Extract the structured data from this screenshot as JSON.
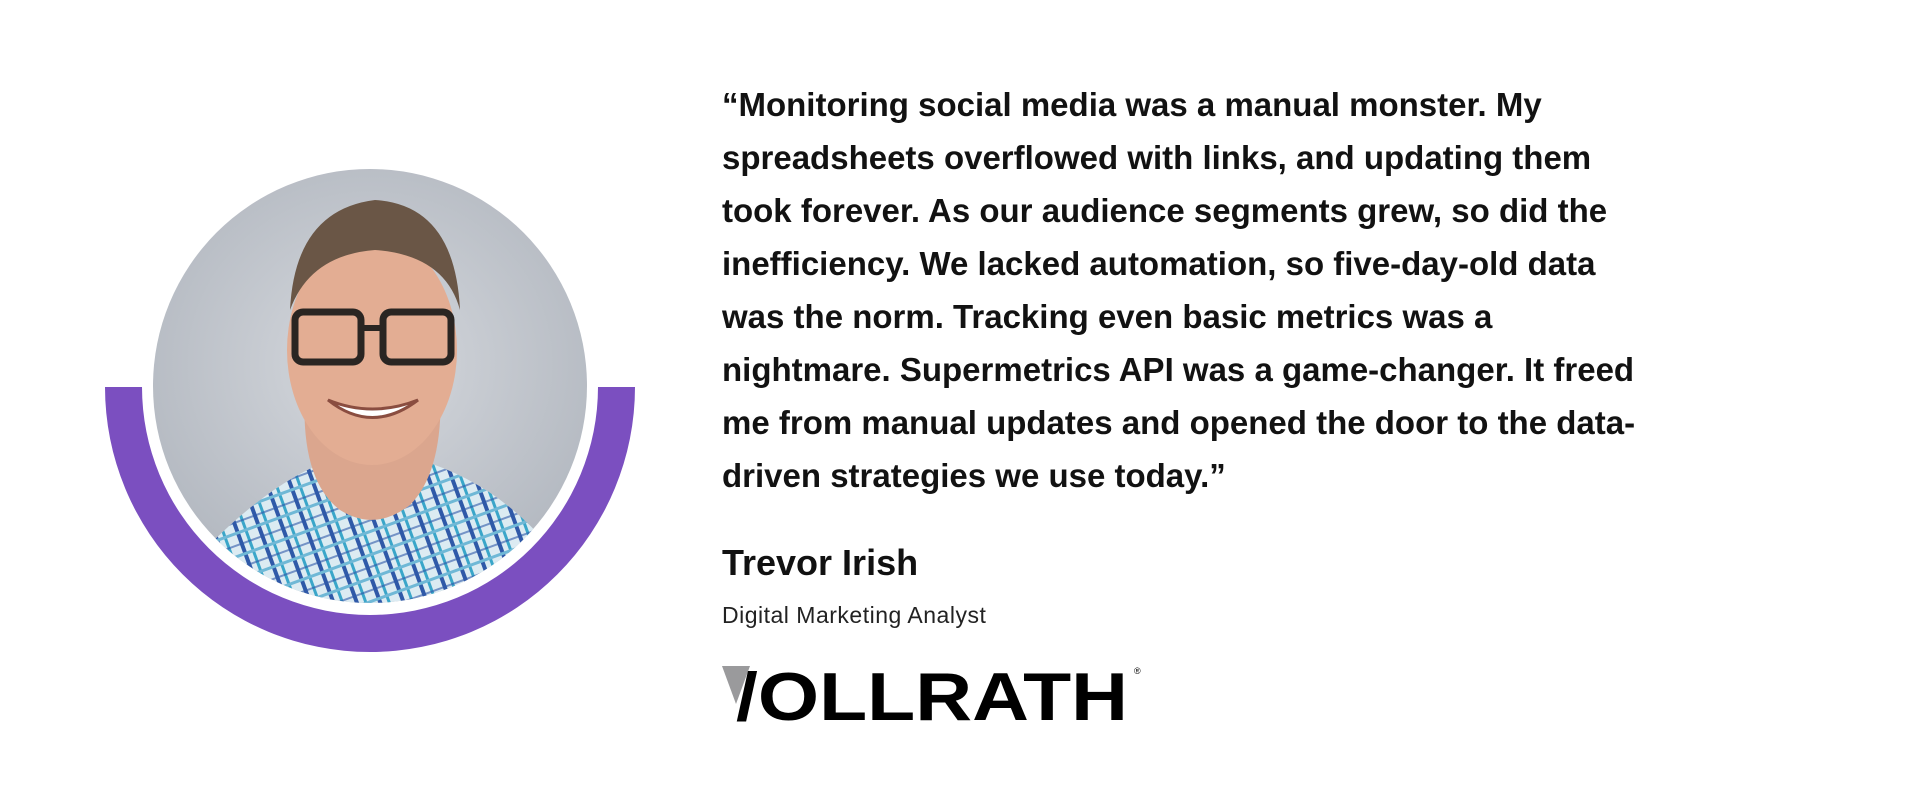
{
  "testimonial": {
    "quote_lines": [
      "“Monitoring social media was a manual monster. My",
      "spreadsheets overflowed with links, and updating them",
      "took forever. As our audience segments grew, so did the",
      "inefficiency. We lacked automation, so five-day-old data",
      "was the norm. Tracking even basic metrics was a",
      "nightmare. Supermetrics API was a game-changer. It freed",
      "me from manual updates and opened the door to the data-",
      "driven strategies we use today.”"
    ],
    "name": "Trevor Irish",
    "job_title": "Digital Marketing Analyst",
    "company_logo": "VOLLRATH"
  },
  "colors": {
    "accent_arc": "#7b4fc0",
    "text": "#121212",
    "logo_triangle": "#9a9a9c"
  },
  "icons": {
    "portrait": "person-photo",
    "logo": "vollrath-logo"
  }
}
